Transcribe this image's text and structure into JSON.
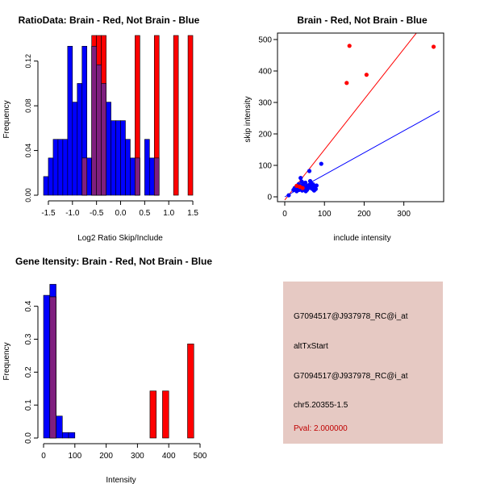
{
  "colors": {
    "red": "#ff0000",
    "blue": "#0000ff",
    "overlap": "#7f1f7f",
    "infoBackground": "#e6c9c3",
    "pval": "#c00000"
  },
  "chart_data": [
    {
      "type": "bar",
      "subtype": "histogram",
      "title": "RatioData: Brain - Red, Not Brain - Blue",
      "xlabel": "Log2 Ratio Skip/Include",
      "ylabel": "Frequency",
      "xlim": [
        -1.6,
        1.6
      ],
      "ylim": [
        0,
        0.14
      ],
      "xticks": [
        -1.5,
        -1.0,
        -0.5,
        0.0,
        0.5,
        1.0,
        1.5
      ],
      "xtick_labels": [
        "-1.5",
        "-1.0",
        "-0.5",
        "0.0",
        "0.5",
        "1.0",
        "1.5"
      ],
      "yticks": [
        0.0,
        0.04,
        0.08,
        0.12
      ],
      "ytick_labels": [
        "0.00",
        "0.04",
        "0.08",
        "0.12"
      ],
      "series": [
        {
          "name": "Not Brain",
          "color": "blue",
          "bins": [
            [
              -1.6,
              -1.5,
              0.0167
            ],
            [
              -1.5,
              -1.4,
              0.0333
            ],
            [
              -1.4,
              -1.3,
              0.05
            ],
            [
              -1.3,
              -1.2,
              0.05
            ],
            [
              -1.2,
              -1.1,
              0.05
            ],
            [
              -1.1,
              -1.0,
              0.1333
            ],
            [
              -1.0,
              -0.9,
              0.0833
            ],
            [
              -0.9,
              -0.8,
              0.1
            ],
            [
              -0.8,
              -0.7,
              0.1333
            ],
            [
              -0.7,
              -0.6,
              0.0333
            ],
            [
              -0.6,
              -0.5,
              0.1333
            ],
            [
              -0.5,
              -0.4,
              0.1167
            ],
            [
              -0.4,
              -0.3,
              0.1
            ],
            [
              -0.3,
              -0.2,
              0.0833
            ],
            [
              -0.2,
              -0.1,
              0.0667
            ],
            [
              -0.1,
              0.0,
              0.0667
            ],
            [
              0.0,
              0.1,
              0.0667
            ],
            [
              0.1,
              0.2,
              0.05
            ],
            [
              0.2,
              0.3,
              0.0333
            ],
            [
              0.3,
              0.4,
              0.0333
            ],
            [
              0.5,
              0.6,
              0.05
            ],
            [
              0.6,
              0.7,
              0.0333
            ],
            [
              0.7,
              0.8,
              0.0333
            ]
          ]
        },
        {
          "name": "Brain",
          "color": "red",
          "bins": [
            [
              -0.8,
              -0.7,
              0.0333
            ],
            [
              -0.6,
              -0.5,
              0.1429
            ],
            [
              -0.5,
              -0.4,
              0.1429
            ],
            [
              -0.4,
              -0.3,
              0.1429
            ],
            [
              0.3,
              0.4,
              0.1429
            ],
            [
              0.7,
              0.8,
              0.1429
            ],
            [
              1.1,
              1.2,
              0.1429
            ],
            [
              1.4,
              1.5,
              0.1429
            ]
          ]
        }
      ]
    },
    {
      "type": "scatter",
      "title": "Brain - Red, Not Brain - Blue",
      "xlabel": "include intensity",
      "ylabel": "skip intensity",
      "xlim": [
        0,
        380
      ],
      "ylim": [
        0,
        500
      ],
      "xticks": [
        0,
        100,
        200,
        300
      ],
      "xtick_labels": [
        "0",
        "100",
        "200",
        "300"
      ],
      "yticks": [
        0,
        100,
        200,
        300,
        400,
        500
      ],
      "ytick_labels": [
        "0",
        "100",
        "200",
        "300",
        "400",
        "500"
      ],
      "series": [
        {
          "name": "Brain",
          "color": "red",
          "points": [
            [
              163,
              480
            ],
            [
              375,
              477
            ],
            [
              206,
              388
            ],
            [
              156,
              362
            ],
            [
              30,
              35
            ],
            [
              38,
              32
            ],
            [
              45,
              28
            ]
          ],
          "fit_line": {
            "slope": 1.6,
            "intercept": -10
          }
        },
        {
          "name": "Not Brain",
          "color": "blue",
          "points": [
            [
              10,
              5
            ],
            [
              22,
              22
            ],
            [
              25,
              28
            ],
            [
              28,
              30
            ],
            [
              30,
              18
            ],
            [
              32,
              25
            ],
            [
              35,
              40
            ],
            [
              36,
              22
            ],
            [
              38,
              30
            ],
            [
              40,
              35
            ],
            [
              42,
              28
            ],
            [
              44,
              20
            ],
            [
              46,
              38
            ],
            [
              48,
              25
            ],
            [
              50,
              32
            ],
            [
              52,
              45
            ],
            [
              55,
              30
            ],
            [
              56,
              22
            ],
            [
              58,
              35
            ],
            [
              60,
              28
            ],
            [
              62,
              38
            ],
            [
              64,
              50
            ],
            [
              66,
              28
            ],
            [
              68,
              35
            ],
            [
              70,
              25
            ],
            [
              72,
              32
            ],
            [
              74,
              20
            ],
            [
              76,
              30
            ],
            [
              78,
              25
            ],
            [
              80,
              36
            ],
            [
              62,
              82
            ],
            [
              92,
              105
            ],
            [
              40,
              60
            ],
            [
              47,
              27
            ],
            [
              53,
              18
            ],
            [
              66,
              45
            ],
            [
              71,
              40
            ],
            [
              43,
              48
            ],
            [
              33,
              36
            ],
            [
              57,
              26
            ]
          ],
          "fit_line": {
            "slope": 0.7,
            "intercept": 0
          }
        }
      ]
    },
    {
      "type": "bar",
      "subtype": "histogram",
      "title": "Gene Itensity: Brain - Red, Not Brain - Blue",
      "xlabel": "Intensity",
      "ylabel": "Frequency",
      "xlim": [
        0,
        500
      ],
      "ylim": [
        0,
        0.48
      ],
      "xticks": [
        0,
        100,
        200,
        300,
        400,
        500
      ],
      "xtick_labels": [
        "0",
        "100",
        "200",
        "300",
        "400",
        "500"
      ],
      "yticks": [
        0.0,
        0.1,
        0.2,
        0.3,
        0.4
      ],
      "ytick_labels": [
        "0.0",
        "0.1",
        "0.2",
        "0.3",
        "0.4"
      ],
      "series": [
        {
          "name": "Not Brain",
          "color": "blue",
          "bins": [
            [
              0,
              20,
              0.4333
            ],
            [
              20,
              40,
              0.4667
            ],
            [
              40,
              60,
              0.0667
            ],
            [
              60,
              80,
              0.0167
            ],
            [
              80,
              100,
              0.0167
            ]
          ]
        },
        {
          "name": "Brain",
          "color": "red",
          "bins": [
            [
              20,
              40,
              0.4286
            ],
            [
              340,
              360,
              0.1429
            ],
            [
              380,
              400,
              0.1429
            ],
            [
              460,
              480,
              0.2857
            ]
          ]
        }
      ]
    }
  ],
  "info": {
    "probe_id": "G7094517@J937978_RC@i_at",
    "event_type": "altTxStart",
    "probe_id_2": "G7094517@J937978_RC@i_at",
    "location": "chr5.20355-1.5",
    "pval": "Pval: 2.000000"
  }
}
